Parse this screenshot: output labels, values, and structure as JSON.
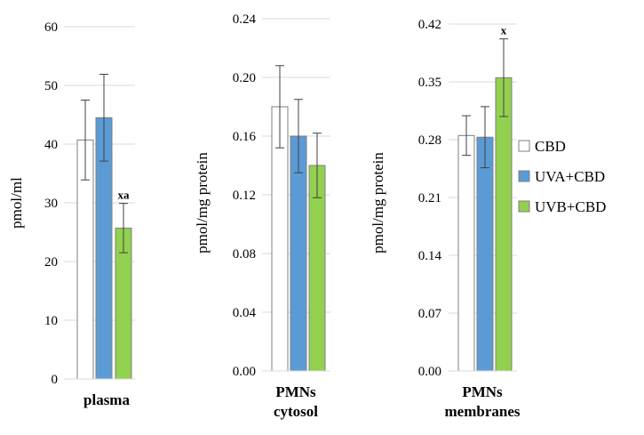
{
  "chart_data": [
    {
      "type": "bar",
      "panel": "plasma",
      "xlabel": "plasma",
      "ylabel": "pmol/ml",
      "ylim": [
        0,
        60
      ],
      "yticks": [
        0,
        10,
        20,
        30,
        40,
        50,
        60
      ],
      "ytick_labels": [
        "0",
        "10",
        "20",
        "30",
        "40",
        "50",
        "60"
      ],
      "grid": true,
      "series": [
        {
          "name": "CBD",
          "value": 40.7,
          "error": 6.8,
          "annotation": ""
        },
        {
          "name": "UVA+CBD",
          "value": 44.5,
          "error": 7.4,
          "annotation": ""
        },
        {
          "name": "UVB+CBD",
          "value": 25.7,
          "error": 4.2,
          "annotation": "xa"
        }
      ]
    },
    {
      "type": "bar",
      "panel": "PMNs cytosol",
      "xlabel": [
        "PMNs",
        "cytosol"
      ],
      "ylabel": "pmol/mg protein",
      "ylim": [
        0,
        0.24
      ],
      "yticks": [
        0,
        0.04,
        0.08,
        0.12,
        0.16,
        0.2,
        0.24
      ],
      "ytick_labels": [
        "0.00",
        "0.04",
        "0.08",
        "0.12",
        "0.16",
        "0.20",
        "0.24"
      ],
      "grid": true,
      "series": [
        {
          "name": "CBD",
          "value": 0.18,
          "error": 0.028,
          "annotation": ""
        },
        {
          "name": "UVA+CBD",
          "value": 0.16,
          "error": 0.025,
          "annotation": ""
        },
        {
          "name": "UVB+CBD",
          "value": 0.14,
          "error": 0.022,
          "annotation": ""
        }
      ]
    },
    {
      "type": "bar",
      "panel": "PMNs membranes",
      "xlabel": [
        "PMNs",
        "membranes"
      ],
      "ylabel": "pmol/mg protein",
      "ylim": [
        0,
        0.42
      ],
      "yticks": [
        0,
        0.07,
        0.14,
        0.21,
        0.28,
        0.35,
        0.42
      ],
      "ytick_labels": [
        "0.00",
        "0.07",
        "0.14",
        "0.21",
        "0.28",
        "0.35",
        "0.42"
      ],
      "grid": true,
      "series": [
        {
          "name": "CBD",
          "value": 0.285,
          "error": 0.024,
          "annotation": ""
        },
        {
          "name": "UVA+CBD",
          "value": 0.283,
          "error": 0.037,
          "annotation": ""
        },
        {
          "name": "UVB+CBD",
          "value": 0.355,
          "error": 0.047,
          "annotation": "x"
        }
      ]
    }
  ],
  "legend": {
    "placement": "right",
    "items": [
      {
        "label": "CBD",
        "color": "#ffffff"
      },
      {
        "label": "UVA+CBD",
        "color": "#5b9bd5"
      },
      {
        "label": "UVB+CBD",
        "color": "#92d050"
      }
    ]
  },
  "colors": {
    "CBD": "#ffffff",
    "UVA+CBD": "#5b9bd5",
    "UVB+CBD": "#92d050",
    "bar_edge": "#7f7f7f",
    "error_bar": "#404040",
    "grid": "#d9d9d9"
  }
}
